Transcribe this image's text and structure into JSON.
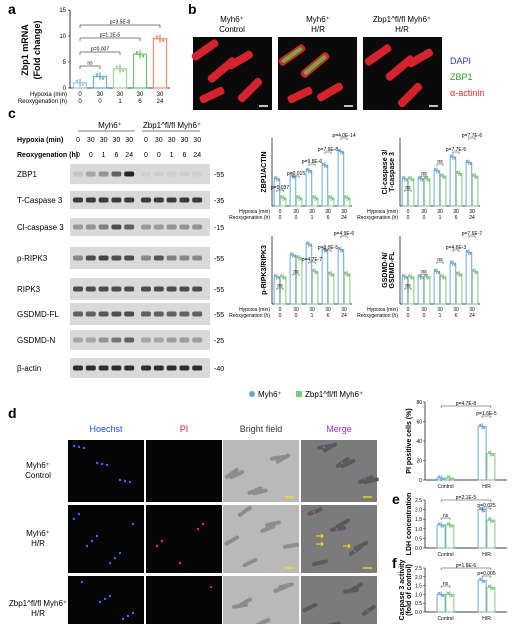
{
  "panel_letters": [
    "a",
    "b",
    "c",
    "d",
    "e",
    "f"
  ],
  "colors": {
    "myh6": "#6aa8d8",
    "zbp1": "#7fc97f",
    "bar_a": [
      "#9ecae1",
      "#6baed6",
      "#a1d99b",
      "#74c476",
      "#fc9272"
    ]
  },
  "panel_a": {
    "ylabel": "Zbp1 mRNA\n(Fold change)",
    "yticks": [
      "0",
      "5",
      "10",
      "15"
    ],
    "row_labels": [
      "Hypoxia (min)",
      "Reoxygenation (h)"
    ],
    "hyp": [
      "0",
      "30",
      "30",
      "30",
      "30"
    ],
    "reo": [
      "0",
      "0",
      "1",
      "6",
      "24"
    ],
    "pvals": [
      "p=3.5E-8",
      "p=1.1E-5",
      "p=0.007",
      "ns"
    ]
  },
  "panel_b": {
    "cols": [
      "Myh6⁺\nControl",
      "Myh6⁺\nH/R",
      "Zbp1^fl/fl Myh6⁺\nH/R"
    ],
    "legend": [
      "DAPI",
      "ZBP1",
      "α-actinin"
    ]
  },
  "panel_c_blot": {
    "group1": "Myh6⁺",
    "group2": "Zbp1^fl/fl Myh6⁺",
    "hyp_label": "Hypoxia  (min)",
    "reo_label": "Reoxygenation (h)",
    "hyp": [
      "0",
      "30",
      "30",
      "30",
      "30",
      "0",
      "30",
      "30",
      "30",
      "30"
    ],
    "reo": [
      "0",
      "0",
      "1",
      "6",
      "24",
      "0",
      "0",
      "1",
      "6",
      "24"
    ],
    "bands": [
      "ZBP1",
      "T-Caspase 3",
      "Cl-caspase 3",
      "p-RIPK3",
      "RIPK3",
      "GSDMD-FL",
      "GSDMD-N",
      "β-actin"
    ],
    "kda": [
      "55",
      "35",
      "15",
      "55",
      "55",
      "55",
      "25",
      "40"
    ]
  },
  "panel_c_graphs": [
    {
      "ylabel": "ZBP1/ACTIN",
      "pvals": [
        "p=4.0E-14",
        "p=7.9E-8",
        "p=9.8E-6",
        "p=0.015",
        "p=0.037"
      ]
    },
    {
      "ylabel": "Cl-caspase 3/\nT-caspase 3",
      "pvals": [
        "p=7.7E-6",
        "p=7.7E-5",
        "ns",
        "ns",
        "ns"
      ]
    },
    {
      "ylabel": "p-RIPK3/RIPK3",
      "pvals": [
        "p=4.9E-6",
        "p=3.0E-5",
        "p=4.7E-7",
        "ns",
        "ns"
      ]
    },
    {
      "ylabel": "GSDMD-N/\nGSDMD-FL",
      "pvals": [
        "p=7.6E-7",
        "p=4.6E-3",
        "ns",
        "ns",
        "ns"
      ]
    }
  ],
  "graph_axis": {
    "hyp_label": "Hypoxia  (min)",
    "reo_label": "Reoxygenation (h)",
    "hyp": [
      "0",
      "30",
      "30",
      "30",
      "30"
    ],
    "reo": [
      "0",
      "0",
      "1",
      "6",
      "24"
    ]
  },
  "legend_main": {
    "myh6": "Myh6⁺",
    "zbp1": "Zbp1^fl/fl Myh6⁺"
  },
  "panel_d": {
    "cols": [
      "Hoechst",
      "PI",
      "Bright field",
      "Merge"
    ],
    "rows": [
      "Myh6⁺\nControl",
      "Myh6⁺\nH/R",
      "Zbp1^fl/fl Myh6⁺\nH/R"
    ]
  },
  "panel_pi": {
    "ylabel": "PI positive cells (%)",
    "yticks": [
      "0",
      "20",
      "40",
      "60",
      "80"
    ],
    "cats": [
      "Control",
      "H/R"
    ],
    "pvals": [
      "p=4.7E-8",
      "p=1.6E-5"
    ]
  },
  "panel_e": {
    "ylabel": "LDH concentration",
    "yticks": [
      "0.0",
      "0.5",
      "1.0",
      "1.5",
      "2.0",
      "2.5"
    ],
    "cats": [
      "Control",
      "H/R"
    ],
    "pvals": [
      "p=2.1E-5",
      "p=0.025",
      "ns"
    ]
  },
  "panel_f": {
    "ylabel": "Caspase 3 activity\n(fold of control)",
    "yticks": [
      "0.0",
      "0.5",
      "1.0",
      "1.5",
      "2.0",
      "2.5"
    ],
    "cats": [
      "Control",
      "H/R"
    ],
    "pvals": [
      "p=1.6E-6",
      "p=0.005",
      "ns"
    ]
  },
  "chart_data": [
    {
      "type": "bar",
      "panel": "a",
      "categories": [
        "0/0",
        "30/0",
        "30/1",
        "30/6",
        "30/24"
      ],
      "values": [
        1.0,
        2.2,
        3.7,
        6.5,
        9.5
      ],
      "ylim": [
        0,
        15
      ],
      "ylabel": "Zbp1 mRNA (Fold change)"
    },
    {
      "type": "bar",
      "panel": "c-ZBP1/ACTIN",
      "categories": [
        "0/0",
        "30/0",
        "30/1",
        "30/6",
        "30/24"
      ],
      "series": [
        {
          "name": "Myh6⁺",
          "values": [
            1.0,
            1.1,
            1.3,
            1.5,
            2.0
          ]
        },
        {
          "name": "Zbp1^fl/fl Myh6⁺",
          "values": [
            0.3,
            0.3,
            0.3,
            0.3,
            0.3
          ]
        }
      ],
      "ylim": [
        0,
        2.5
      ]
    },
    {
      "type": "bar",
      "panel": "c-Cl-caspase3",
      "categories": [
        "0/0",
        "30/0",
        "30/1",
        "30/6",
        "30/24"
      ],
      "series": [
        {
          "name": "Myh6⁺",
          "values": [
            1.0,
            1.0,
            1.3,
            1.8,
            1.6
          ]
        },
        {
          "name": "Zbp1^fl/fl Myh6⁺",
          "values": [
            1.0,
            1.0,
            1.1,
            1.2,
            1.1
          ]
        }
      ],
      "ylim": [
        0,
        2.5
      ]
    },
    {
      "type": "bar",
      "panel": "c-p-RIPK3",
      "categories": [
        "0/0",
        "30/0",
        "30/1",
        "30/6",
        "30/24"
      ],
      "series": [
        {
          "name": "Myh6⁺",
          "values": [
            1.0,
            1.8,
            2.2,
            2.0,
            2.0
          ]
        },
        {
          "name": "Zbp1^fl/fl Myh6⁺",
          "values": [
            1.0,
            1.7,
            1.2,
            1.1,
            1.1
          ]
        }
      ],
      "ylim": [
        0,
        2.5
      ]
    },
    {
      "type": "bar",
      "panel": "c-GSDMD",
      "categories": [
        "0/0",
        "30/0",
        "30/1",
        "30/6",
        "30/24"
      ],
      "series": [
        {
          "name": "Myh6⁺",
          "values": [
            1.0,
            1.0,
            1.2,
            1.5,
            1.9
          ]
        },
        {
          "name": "Zbp1^fl/fl Myh6⁺",
          "values": [
            1.0,
            1.0,
            1.0,
            1.1,
            1.2
          ]
        }
      ],
      "ylim": [
        0,
        2.5
      ]
    },
    {
      "type": "bar",
      "panel": "PI",
      "categories": [
        "Control",
        "H/R"
      ],
      "series": [
        {
          "name": "Myh6⁺",
          "values": [
            2,
            55
          ]
        },
        {
          "name": "Zbp1^fl/fl Myh6⁺",
          "values": [
            2,
            27
          ]
        }
      ],
      "ylim": [
        0,
        80
      ]
    },
    {
      "type": "bar",
      "panel": "e",
      "categories": [
        "Control",
        "H/R"
      ],
      "series": [
        {
          "name": "Myh6⁺",
          "values": [
            1.2,
            2.0
          ]
        },
        {
          "name": "Zbp1^fl/fl Myh6⁺",
          "values": [
            1.2,
            1.45
          ]
        }
      ],
      "ylim": [
        0,
        2.5
      ]
    },
    {
      "type": "bar",
      "panel": "f",
      "categories": [
        "Control",
        "H/R"
      ],
      "series": [
        {
          "name": "Myh6⁺",
          "values": [
            1.0,
            1.8
          ]
        },
        {
          "name": "Zbp1^fl/fl Myh6⁺",
          "values": [
            1.0,
            1.4
          ]
        }
      ],
      "ylim": [
        0,
        2.5
      ]
    }
  ]
}
